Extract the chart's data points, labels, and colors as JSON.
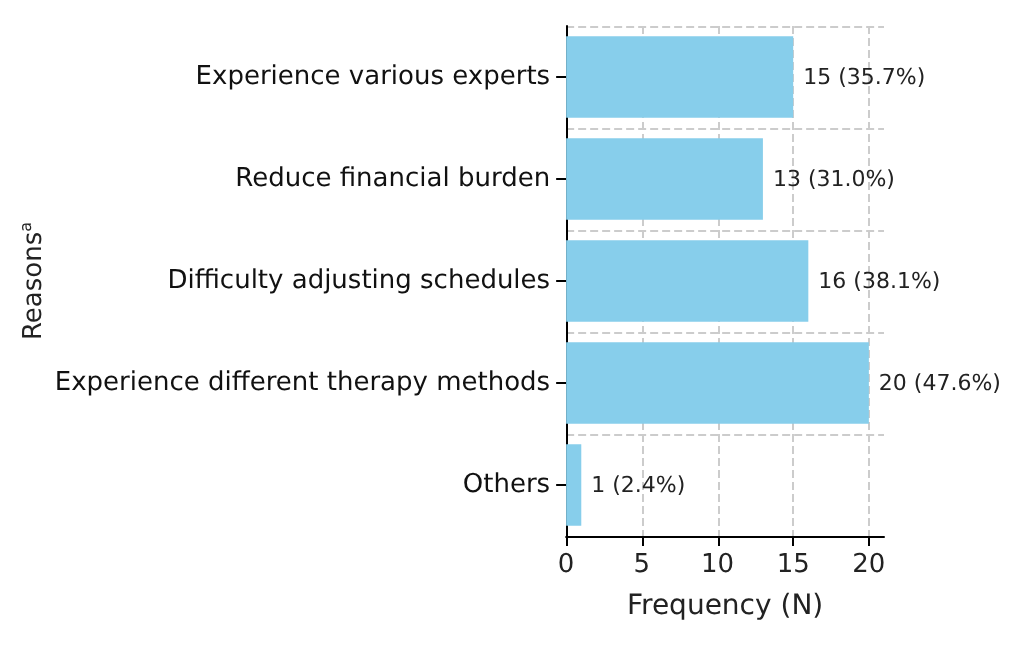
{
  "chart_data": {
    "type": "bar",
    "orientation": "horizontal",
    "xlabel": "Frequency (N)",
    "ylabel": "Reasons$^{a}$",
    "categories": [
      "Experience various experts",
      "Reduce financial burden",
      "Difficulty adjusting schedules",
      "Experience different therapy methods",
      "Others"
    ],
    "values": [
      15,
      13,
      16,
      20,
      1
    ],
    "value_labels": [
      "15 (35.7%)",
      "13 (31.0%)",
      "16 (38.1%)",
      "20 (47.6%)",
      "1 (2.4%)"
    ],
    "color": "#87ceeb",
    "xlim": [
      0,
      21
    ],
    "xticks": [
      0,
      5,
      10,
      15,
      20
    ],
    "grid": true
  }
}
